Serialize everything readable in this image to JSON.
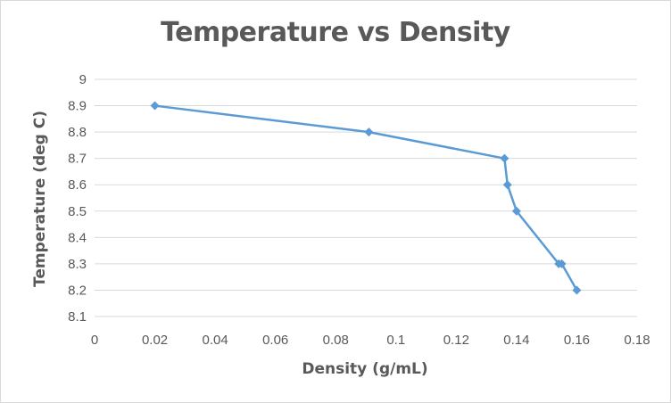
{
  "chart_data": {
    "type": "scatter",
    "title": "Temperature vs Density",
    "xlabel": "Density (g/mL)",
    "ylabel": "Temperature (deg C)",
    "xlim": [
      0,
      0.18
    ],
    "ylim": [
      8.1,
      9
    ],
    "x_ticks": [
      "0",
      "0.02",
      "0.04",
      "0.06",
      "0.08",
      "0.1",
      "0.12",
      "0.14",
      "0.16",
      "0.18"
    ],
    "y_ticks": [
      "8.1",
      "8.2",
      "8.3",
      "8.4",
      "8.5",
      "8.6",
      "8.7",
      "8.8",
      "8.9",
      "9"
    ],
    "grid": "horizontal",
    "legend": "none",
    "series": [
      {
        "color": "#5b9bd5",
        "line": true,
        "marker": "diamond",
        "points": [
          {
            "x": 0.02,
            "y": 8.9
          },
          {
            "x": 0.091,
            "y": 8.8
          },
          {
            "x": 0.136,
            "y": 8.7
          },
          {
            "x": 0.137,
            "y": 8.6
          },
          {
            "x": 0.14,
            "y": 8.5
          },
          {
            "x": 0.154,
            "y": 8.3
          },
          {
            "x": 0.155,
            "y": 8.3
          },
          {
            "x": 0.16,
            "y": 8.2
          }
        ]
      }
    ],
    "colors": {
      "grid": "#d9d9d9",
      "text": "#595959",
      "border": "#d9d9d9"
    }
  }
}
